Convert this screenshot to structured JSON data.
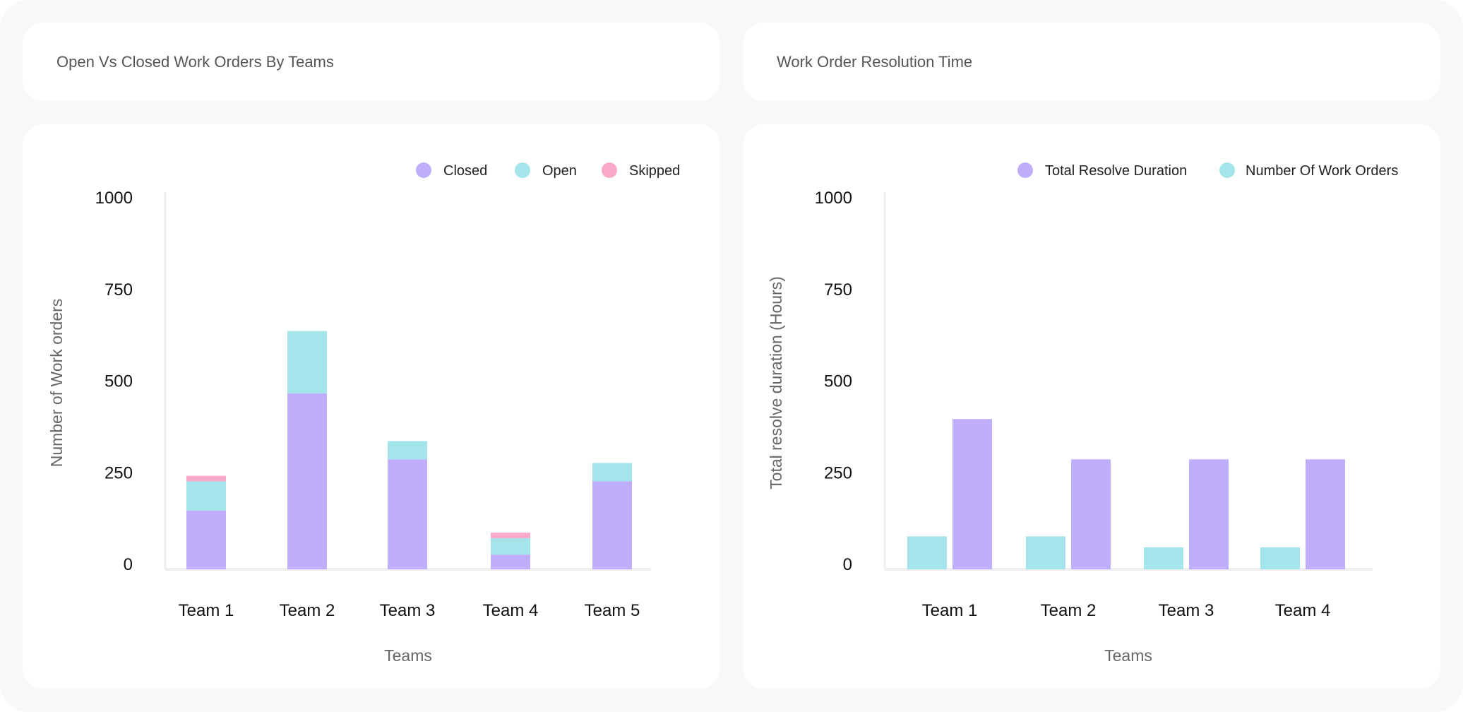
{
  "panels": [
    {
      "title": "Open Vs Closed Work Orders By Teams"
    },
    {
      "title": "Work Order Resolution Time"
    }
  ],
  "colors": {
    "closed": "#bfaefc",
    "open": "#a4e5ec",
    "skipped": "#f9aac9"
  },
  "chart_data": [
    {
      "type": "bar",
      "stacked": true,
      "title": "Open Vs Closed Work Orders By Teams",
      "xlabel": "Teams",
      "ylabel": "Number of Work orders",
      "ylim": [
        0,
        1000
      ],
      "yticks": [
        "0",
        "250",
        "500",
        "750",
        "1000"
      ],
      "grid": false,
      "legend_position": "top-right",
      "categories": [
        "Team 1",
        "Team 2",
        "Team 3",
        "Team 4",
        "Team 5"
      ],
      "series": [
        {
          "name": "Closed",
          "color": "#bfaefc",
          "values": [
            160,
            480,
            300,
            40,
            240
          ]
        },
        {
          "name": "Open",
          "color": "#a4e5ec",
          "values": [
            80,
            170,
            50,
            45,
            50
          ]
        },
        {
          "name": "Skipped",
          "color": "#f9aac9",
          "values": [
            15,
            0,
            0,
            15,
            0
          ]
        }
      ]
    },
    {
      "type": "bar",
      "stacked": false,
      "title": "Work Order Resolution Time",
      "xlabel": "Teams",
      "ylabel": "Total resolve duration (Hours)",
      "ylim": [
        0,
        1000
      ],
      "yticks": [
        "0",
        "250",
        "500",
        "750",
        "1000"
      ],
      "grid": false,
      "legend_position": "top-right",
      "categories": [
        "Team 1",
        "Team 2",
        "Team 3",
        "Team 4"
      ],
      "legend": [
        {
          "name": "Total Resolve Duration",
          "color": "#bfaefc"
        },
        {
          "name": "Number Of Work Orders",
          "color": "#a4e5ec"
        }
      ],
      "series": [
        {
          "name": "Number Of Work Orders",
          "color": "#a4e5ec",
          "values": [
            90,
            90,
            60,
            60
          ]
        },
        {
          "name": "Total Resolve Duration",
          "color": "#bfaefc",
          "values": [
            410,
            300,
            300,
            300
          ]
        }
      ]
    }
  ]
}
